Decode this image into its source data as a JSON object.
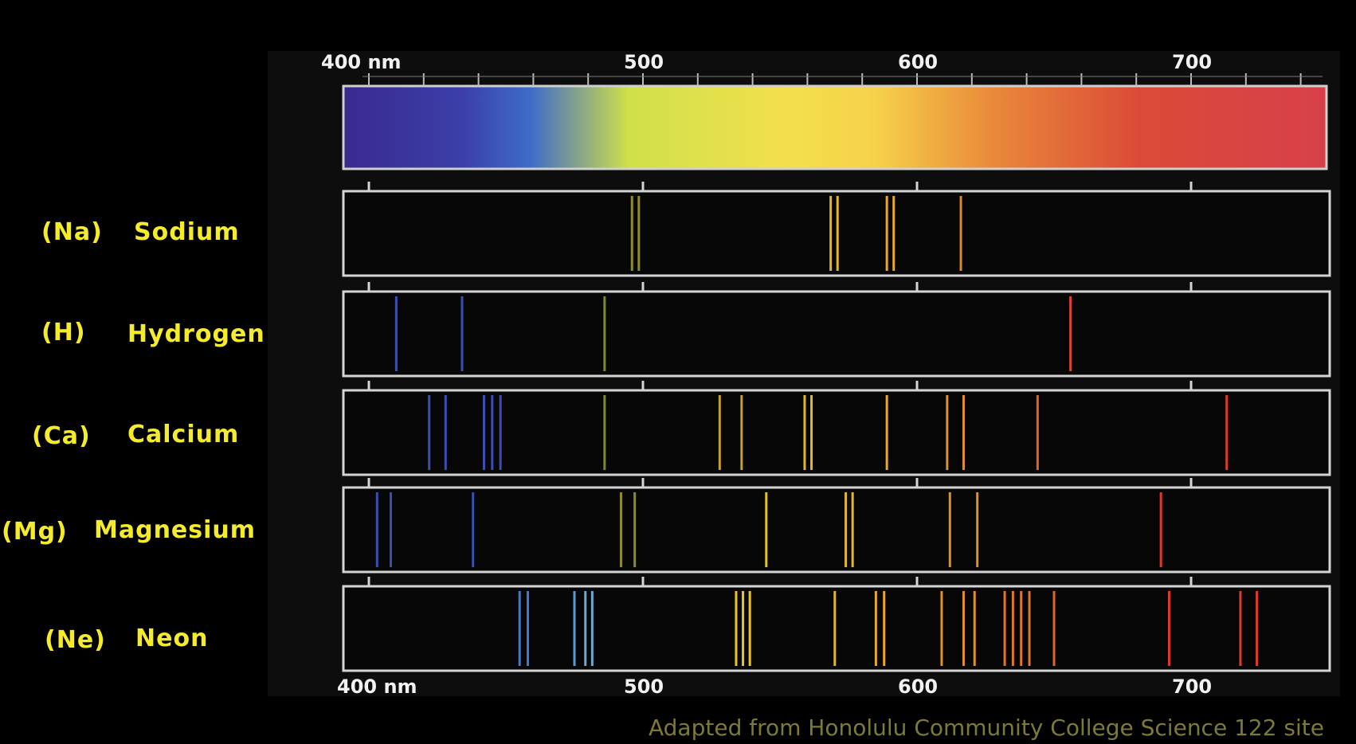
{
  "axis": {
    "min_nm": 380,
    "max_nm": 750,
    "top_labels": [
      "400 nm",
      "500",
      "600",
      "700"
    ],
    "bottom_labels": [
      "400 nm",
      "500",
      "600",
      "700"
    ],
    "label_values": [
      400,
      500,
      600,
      700
    ]
  },
  "spectrum_colors": [
    "#3a2a90",
    "#3b3fa8",
    "#3f6bc8",
    "#cfe04a",
    "#f3df4e",
    "#f6d24a",
    "#e9893a",
    "#db4a38",
    "#d7404a"
  ],
  "elements": [
    {
      "symbol": "(Na)",
      "name": "Sodium",
      "lines": [
        {
          "nm": 496,
          "color": "#8d8c2a"
        },
        {
          "nm": 498.5,
          "color": "#8d8c2a"
        },
        {
          "nm": 568.5,
          "color": "#e2b62a"
        },
        {
          "nm": 571,
          "color": "#e2b62a"
        },
        {
          "nm": 589,
          "color": "#e8a92a"
        },
        {
          "nm": 591.5,
          "color": "#e8a92a"
        },
        {
          "nm": 616,
          "color": "#d98a2a"
        }
      ]
    },
    {
      "symbol": "(H)",
      "name": "Hydrogen",
      "lines": [
        {
          "nm": 410,
          "color": "#3b4fb0"
        },
        {
          "nm": 434,
          "color": "#3b4fb0"
        },
        {
          "nm": 486,
          "color": "#7a8a2a"
        },
        {
          "nm": 656,
          "color": "#e0432a"
        }
      ]
    },
    {
      "symbol": "(Ca)",
      "name": "Calcium",
      "lines": [
        {
          "nm": 422,
          "color": "#3b4fb0"
        },
        {
          "nm": 428,
          "color": "#3b4fb0"
        },
        {
          "nm": 442,
          "color": "#3b4fb0"
        },
        {
          "nm": 445,
          "color": "#3b4fb0"
        },
        {
          "nm": 448,
          "color": "#3b4fb0"
        },
        {
          "nm": 486,
          "color": "#7a8a2a"
        },
        {
          "nm": 528,
          "color": "#c4a12a"
        },
        {
          "nm": 536,
          "color": "#c4a12a"
        },
        {
          "nm": 559,
          "color": "#e2b62a"
        },
        {
          "nm": 561.5,
          "color": "#e2b62a"
        },
        {
          "nm": 589,
          "color": "#e8a92a"
        },
        {
          "nm": 611,
          "color": "#e08f2a"
        },
        {
          "nm": 617,
          "color": "#e08f2a"
        },
        {
          "nm": 644,
          "color": "#e0642a"
        },
        {
          "nm": 713,
          "color": "#e0382a"
        }
      ]
    },
    {
      "symbol": "(Mg)",
      "name": "Magnesium",
      "lines": [
        {
          "nm": 403,
          "color": "#3b4fb0"
        },
        {
          "nm": 408,
          "color": "#3b4fb0"
        },
        {
          "nm": 438,
          "color": "#3b4fb0"
        },
        {
          "nm": 492,
          "color": "#8d8c2a"
        },
        {
          "nm": 497,
          "color": "#8d8c2a"
        },
        {
          "nm": 545,
          "color": "#e2c22a"
        },
        {
          "nm": 574,
          "color": "#e2b62a"
        },
        {
          "nm": 576.5,
          "color": "#e2b62a"
        },
        {
          "nm": 612,
          "color": "#e08f2a"
        },
        {
          "nm": 622,
          "color": "#e08f2a"
        },
        {
          "nm": 689,
          "color": "#e0382a"
        }
      ]
    },
    {
      "symbol": "(Ne)",
      "name": "Neon",
      "lines": [
        {
          "nm": 455,
          "color": "#3f7ad0"
        },
        {
          "nm": 458,
          "color": "#3f7ad0"
        },
        {
          "nm": 475,
          "color": "#5a9ad0"
        },
        {
          "nm": 479,
          "color": "#6aaad0"
        },
        {
          "nm": 481.5,
          "color": "#6aaad0"
        },
        {
          "nm": 534,
          "color": "#e8c42a"
        },
        {
          "nm": 536.5,
          "color": "#e8c42a"
        },
        {
          "nm": 539,
          "color": "#e8c42a"
        },
        {
          "nm": 570,
          "color": "#e2b62a"
        },
        {
          "nm": 585,
          "color": "#e8a92a"
        },
        {
          "nm": 588,
          "color": "#e8a92a"
        },
        {
          "nm": 609,
          "color": "#e08f2a"
        },
        {
          "nm": 617,
          "color": "#e08f2a"
        },
        {
          "nm": 621,
          "color": "#e08f2a"
        },
        {
          "nm": 632,
          "color": "#e0762a"
        },
        {
          "nm": 635,
          "color": "#e0762a"
        },
        {
          "nm": 638,
          "color": "#e0762a"
        },
        {
          "nm": 641,
          "color": "#e0762a"
        },
        {
          "nm": 650,
          "color": "#e0642a"
        },
        {
          "nm": 692,
          "color": "#e0382a"
        },
        {
          "nm": 718,
          "color": "#e0382a"
        },
        {
          "nm": 724,
          "color": "#e0382a"
        }
      ]
    }
  ],
  "credit": "Adapted from Honolulu Community College Science 122 site"
}
